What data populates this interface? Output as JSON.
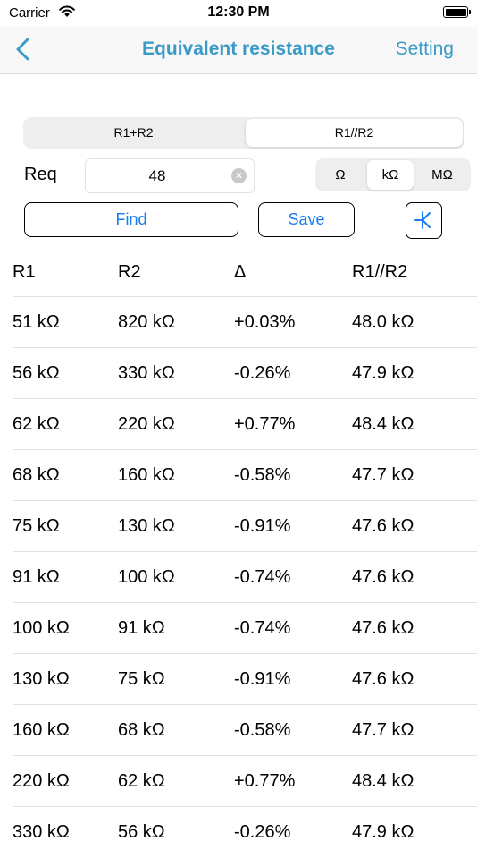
{
  "status_bar": {
    "carrier": "Carrier",
    "time": "12:30 PM"
  },
  "nav": {
    "back_icon": "chevron-left-icon",
    "title": "Equivalent resistance",
    "setting_label": "Setting",
    "accent_color": "#3a9bc7"
  },
  "mode_segment": {
    "options": [
      "R1+R2",
      "R1//R2"
    ],
    "selected": "R1//R2"
  },
  "req": {
    "label": "Req",
    "value": "48",
    "clear_icon": "clear-circle-icon"
  },
  "unit_segment": {
    "options": [
      "Ω",
      "kΩ",
      "MΩ"
    ],
    "selected": "kΩ"
  },
  "buttons": {
    "find_label": "Find",
    "save_label": "Save",
    "symbol_icon": "resistor-parallel-icon",
    "button_text_color": "#1a7cf0"
  },
  "table": {
    "headers": [
      "R1",
      "R2",
      "Δ",
      "R1//R2"
    ],
    "rows": [
      [
        "51 kΩ",
        "820 kΩ",
        "+0.03%",
        "48.0 kΩ"
      ],
      [
        "56 kΩ",
        "330 kΩ",
        "-0.26%",
        "47.9 kΩ"
      ],
      [
        "62 kΩ",
        "220 kΩ",
        "+0.77%",
        "48.4 kΩ"
      ],
      [
        "68 kΩ",
        "160 kΩ",
        "-0.58%",
        "47.7 kΩ"
      ],
      [
        "75 kΩ",
        "130 kΩ",
        "-0.91%",
        "47.6 kΩ"
      ],
      [
        "91 kΩ",
        "100 kΩ",
        "-0.74%",
        "47.6 kΩ"
      ],
      [
        "100 kΩ",
        "91 kΩ",
        "-0.74%",
        "47.6 kΩ"
      ],
      [
        "130 kΩ",
        "75 kΩ",
        "-0.91%",
        "47.6 kΩ"
      ],
      [
        "160 kΩ",
        "68 kΩ",
        "-0.58%",
        "47.7 kΩ"
      ],
      [
        "220 kΩ",
        "62 kΩ",
        "+0.77%",
        "48.4 kΩ"
      ],
      [
        "330 kΩ",
        "56 kΩ",
        "-0.26%",
        "47.9 kΩ"
      ]
    ]
  }
}
